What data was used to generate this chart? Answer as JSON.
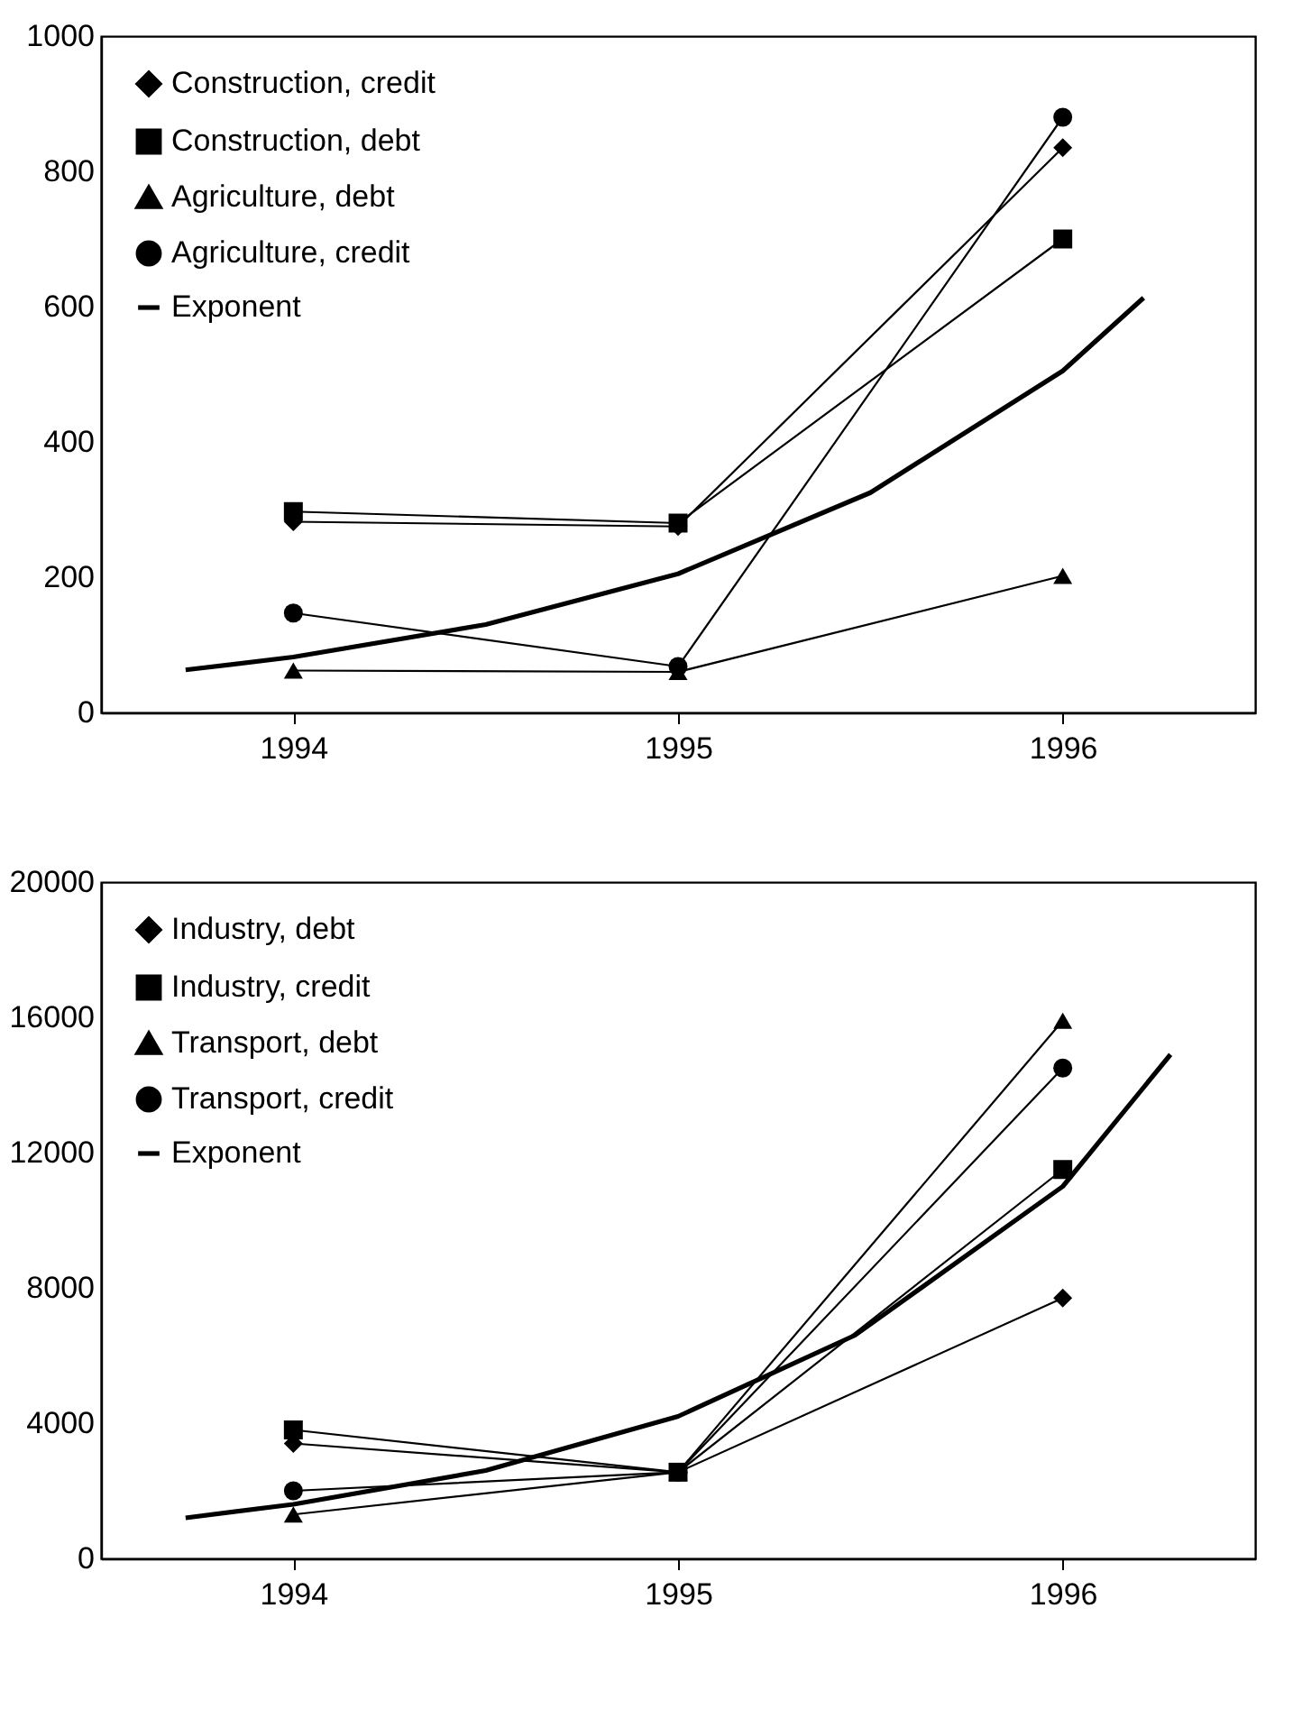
{
  "chart_data": [
    {
      "type": "line",
      "x": [
        1994,
        1995,
        1996
      ],
      "xlim": [
        1993.5,
        1996.5
      ],
      "xticks": [
        1994,
        1995,
        1996
      ],
      "ylim": [
        0,
        1000
      ],
      "yticks": [
        0,
        200,
        400,
        600,
        800,
        1000
      ],
      "grid": false,
      "legend": "top left",
      "series": [
        {
          "name": "Construction, credit",
          "color": "#000000",
          "marker": "diamond",
          "values": [
            282,
            275,
            835
          ]
        },
        {
          "name": "Construction, debt",
          "color": "#000000",
          "marker": "square",
          "values": [
            297,
            280,
            700
          ]
        },
        {
          "name": "Agriculture, debt",
          "color": "#000000",
          "marker": "triangle",
          "values": [
            62,
            60,
            202
          ]
        },
        {
          "name": "Agriculture, credit",
          "color": "#000000",
          "marker": "circle",
          "values": [
            147,
            68,
            880
          ]
        },
        {
          "name": "Exponent",
          "color": "#000000",
          "marker": "none",
          "x": [
            1993.72,
            1994,
            1994.5,
            1995,
            1995.5,
            1996,
            1996.21
          ],
          "values": [
            63,
            82,
            130,
            205,
            325,
            505,
            613
          ]
        }
      ]
    },
    {
      "type": "line",
      "x": [
        1994,
        1995,
        1996
      ],
      "xlim": [
        1993.5,
        1996.5
      ],
      "xticks": [
        1994,
        1995,
        1996
      ],
      "ylim": [
        0,
        20000
      ],
      "yticks": [
        0,
        4000,
        8000,
        12000,
        16000,
        20000
      ],
      "grid": false,
      "legend": "top left",
      "series": [
        {
          "name": "Industry, debt",
          "color": "#000000",
          "marker": "diamond",
          "values": [
            3400,
            2550,
            7700
          ]
        },
        {
          "name": "Industry, credit",
          "color": "#000000",
          "marker": "square",
          "values": [
            3800,
            2550,
            11500
          ]
        },
        {
          "name": "Transport, debt",
          "color": "#000000",
          "marker": "triangle",
          "values": [
            1300,
            2550,
            15900
          ]
        },
        {
          "name": "Transport, credit",
          "color": "#000000",
          "marker": "circle",
          "values": [
            2000,
            2550,
            14500
          ]
        },
        {
          "name": "Exponent",
          "color": "#000000",
          "marker": "none",
          "x": [
            1993.72,
            1994,
            1994.5,
            1995,
            1995.46,
            1996,
            1996.28
          ],
          "values": [
            1200,
            1600,
            2600,
            4200,
            6600,
            11000,
            14900
          ]
        }
      ]
    }
  ]
}
